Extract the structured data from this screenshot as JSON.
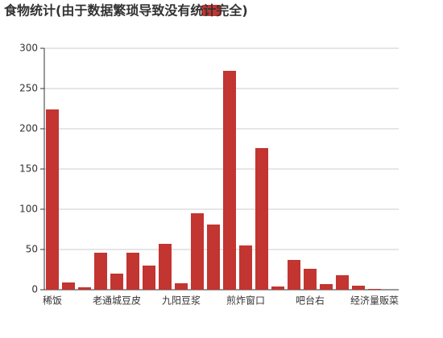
{
  "chart_data": {
    "type": "bar",
    "title": "食物统计(由于数据繁琐导致没有统计完全)",
    "categories": [
      "稀饭",
      null,
      null,
      null,
      "老通城豆皮",
      null,
      null,
      null,
      "九阳豆浆",
      null,
      null,
      null,
      "煎炸窗口",
      null,
      null,
      null,
      "吧台右",
      null,
      null,
      null,
      "经济量贩菜",
      null
    ],
    "values": [
      224,
      9,
      3,
      46,
      20,
      46,
      30,
      57,
      8,
      95,
      81,
      272,
      55,
      176,
      4,
      37,
      26,
      7,
      18,
      5,
      1,
      0
    ],
    "color": "#c23531",
    "ylim": [
      0,
      300
    ],
    "yticks": [
      0,
      50,
      100,
      150,
      200,
      250,
      300
    ],
    "grid": true
  }
}
